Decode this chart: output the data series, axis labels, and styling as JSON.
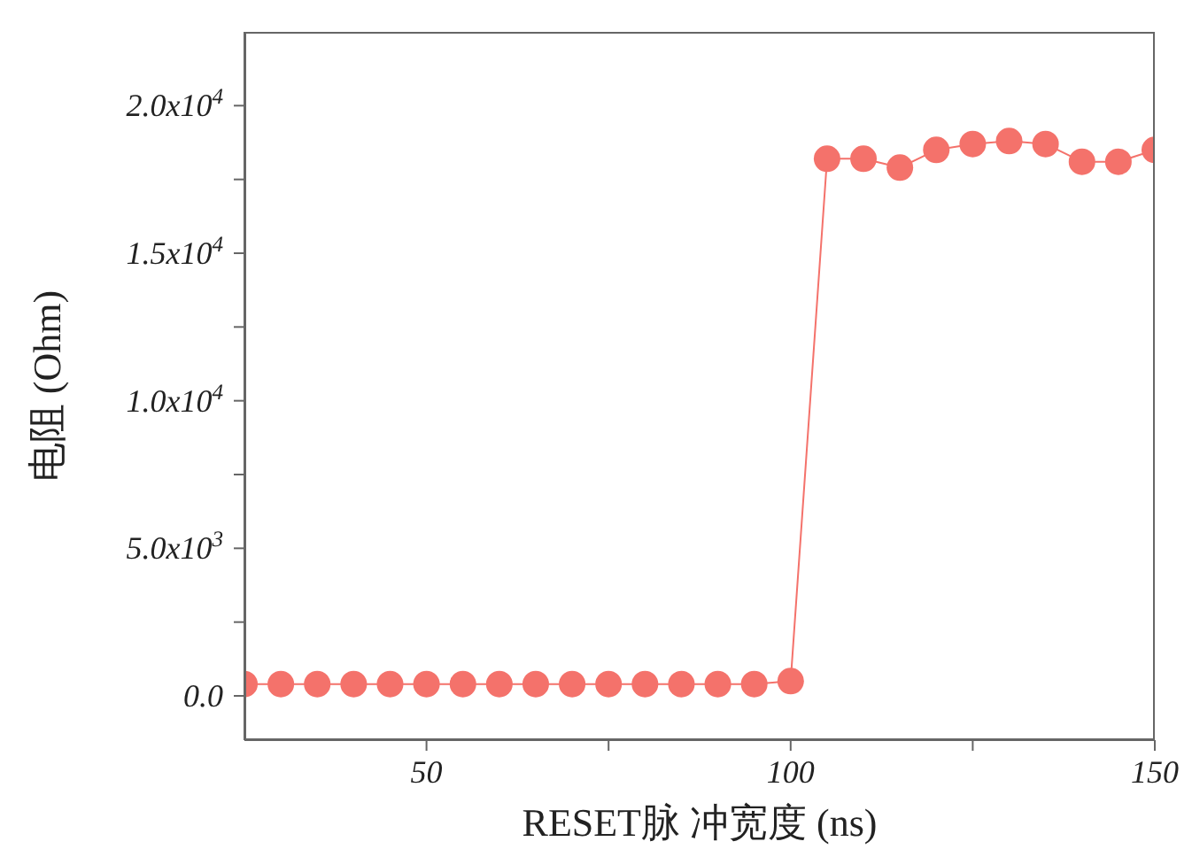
{
  "chart_data": {
    "type": "line",
    "xlabel": "RESET脉 冲宽度 (ns)",
    "ylabel": "电阻 (Ohm)",
    "x": [
      25,
      30,
      35,
      40,
      45,
      50,
      55,
      60,
      65,
      70,
      75,
      80,
      85,
      90,
      95,
      100,
      105,
      110,
      115,
      120,
      125,
      130,
      135,
      140,
      145,
      150
    ],
    "series": [
      {
        "color": "#f4726b",
        "values": [
          400,
          400,
          400,
          400,
          400,
          400,
          400,
          400,
          400,
          400,
          400,
          400,
          400,
          400,
          400,
          500,
          18200,
          18200,
          17900,
          18500,
          18700,
          18800,
          18700,
          18100,
          18100,
          18500
        ]
      }
    ],
    "xlim": [
      25,
      150
    ],
    "xticks": [
      50,
      {
        "value": 75,
        "label": null
      },
      100,
      {
        "value": 125,
        "label": null
      },
      150
    ],
    "ylim": [
      -1500,
      22500
    ],
    "yticks": [
      {
        "value": 0,
        "label": "0.0"
      },
      {
        "value": 2500,
        "label": null
      },
      {
        "value": 5000,
        "label": "5.0x10$^{3}$"
      },
      {
        "value": 7500,
        "label": null
      },
      {
        "value": 10000,
        "label": "1.0x10$^{4}$"
      },
      {
        "value": 12500,
        "label": null
      },
      {
        "value": 15000,
        "label": "1.5x10$^{4}$"
      },
      {
        "value": 17500,
        "label": null
      },
      {
        "value": 20000,
        "label": "2.0x10$^{4}$"
      }
    ],
    "marker": "circle",
    "line_style": "solid",
    "grid": false,
    "legend": false
  }
}
